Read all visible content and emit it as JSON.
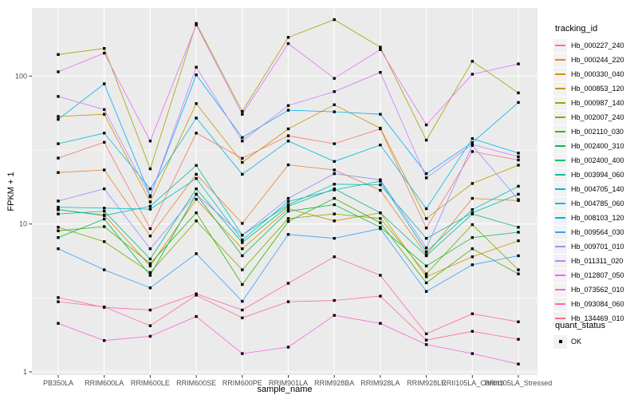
{
  "figure": {
    "panel_background": "#EBEBEB",
    "grid_color": "#FFFFFF",
    "tick_color": "#333333",
    "tick_label_color": "#4D4D4D",
    "point_color": "#000000",
    "legend_key_background": "#F2F2F2"
  },
  "axes": {
    "x_title": "sample_name",
    "y_title": "FPKM + 1"
  },
  "legend": {
    "color_title": "tracking_id",
    "shape_title": "quant_status",
    "shape_entry_label": "OK"
  },
  "chart_data": {
    "type": "line",
    "title": "",
    "xlabel": "sample_name",
    "ylabel": "FPKM + 1",
    "y_scale": "log10",
    "y_ticks": [
      1,
      10,
      100
    ],
    "y_minor_ticks": [
      3.1623,
      31.623,
      316.23
    ],
    "ylim": [
      1,
      320
    ],
    "grid": true,
    "legend_position": "right",
    "point_shape": "filled-square",
    "categories": [
      "PB350LA",
      "RRIM600LA",
      "RRIM600LE",
      "RRIM600SE",
      "RRIM600PE",
      "RRIM901LA",
      "RRIM928BA",
      "RRIM928LA",
      "RRIM928LE",
      "RRII105LA_Control",
      "RRII105LA_Stressed"
    ],
    "series": [
      {
        "name": "Hb_000227_240",
        "color": "#F8766D",
        "values": [
          27.9,
          35.7,
          9.3,
          41.2,
          27.8,
          39.5,
          34.9,
          44.0,
          9.4,
          30.9,
          27.1
        ]
      },
      {
        "name": "Hb_000244_220",
        "color": "#EA8331",
        "values": [
          22.3,
          23.2,
          8.3,
          21.7,
          10.1,
          25.1,
          23.2,
          16.9,
          6.2,
          14.9,
          14.4
        ]
      },
      {
        "name": "Hb_000330_040",
        "color": "#D89000",
        "values": [
          12.5,
          11.5,
          5.2,
          14.7,
          6.8,
          12.7,
          10.5,
          11.9,
          4.4,
          6.0,
          7.7
        ]
      },
      {
        "name": "Hb_000853_120",
        "color": "#C09B00",
        "values": [
          53.3,
          55.2,
          14.1,
          65.2,
          26.1,
          44.0,
          64.0,
          44.5,
          10.9,
          18.8,
          25.0
        ]
      },
      {
        "name": "Hb_000987_140",
        "color": "#A3A500",
        "values": [
          140,
          154,
          23.6,
          227,
          57.8,
          183,
          241,
          157,
          36.9,
          126,
          77.0
        ]
      },
      {
        "name": "Hb_002007_240",
        "color": "#7CAE00",
        "values": [
          9.5,
          7.6,
          4.7,
          10.5,
          4.9,
          10.9,
          11.7,
          10.9,
          4.6,
          9.9,
          4.9
        ]
      },
      {
        "name": "Hb_002110_030",
        "color": "#39B600",
        "values": [
          9.0,
          9.6,
          5.4,
          11.9,
          3.9,
          10.4,
          14.9,
          10.2,
          4.0,
          6.8,
          4.6
        ]
      },
      {
        "name": "Hb_002400_310",
        "color": "#00BB4E",
        "values": [
          8.1,
          10.8,
          4.5,
          15.9,
          6.1,
          12.2,
          13.5,
          9.5,
          5.2,
          8.1,
          8.8
        ]
      },
      {
        "name": "Hb_002400_400",
        "color": "#00BF7D",
        "values": [
          11.7,
          12.2,
          5.8,
          17.3,
          7.5,
          13.2,
          17.3,
          11.9,
          6.1,
          11.7,
          9.5
        ]
      },
      {
        "name": "Hb_003994_060",
        "color": "#00C1A7",
        "values": [
          12.5,
          11.4,
          13.2,
          24.9,
          8.4,
          13.5,
          18.6,
          18.4,
          8.0,
          11.9,
          15.9
        ]
      },
      {
        "name": "Hb_004705_140",
        "color": "#00BFC4",
        "values": [
          13.0,
          12.8,
          12.6,
          20.3,
          7.8,
          14.2,
          17.0,
          19.5,
          6.5,
          12.5,
          18.0
        ]
      },
      {
        "name": "Hb_004785_060",
        "color": "#00BAE0",
        "values": [
          34.9,
          41.2,
          17.3,
          52.1,
          21.7,
          36.4,
          26.5,
          34.2,
          12.7,
          37.8,
          30.2
        ]
      },
      {
        "name": "Hb_008103_120",
        "color": "#00B0F6",
        "values": [
          51.0,
          88.7,
          15.5,
          102,
          38.4,
          58.8,
          57.4,
          55.2,
          21.9,
          35.5,
          66.4
        ]
      },
      {
        "name": "Hb_009564_030",
        "color": "#35A2FF",
        "values": [
          6.8,
          4.9,
          3.7,
          6.3,
          3.0,
          8.5,
          8.0,
          9.3,
          3.5,
          5.3,
          6.1
        ]
      },
      {
        "name": "Hb_009701_010",
        "color": "#9590FF",
        "values": [
          14.3,
          17.3,
          6.8,
          15.9,
          8.4,
          14.9,
          21.9,
          19.9,
          6.9,
          34.0,
          14.6
        ]
      },
      {
        "name": "Hb_011311_020",
        "color": "#C77CFF",
        "values": [
          72.8,
          59.4,
          15.3,
          115,
          36.4,
          63.2,
          78.6,
          106,
          20.5,
          34.5,
          28.5
        ]
      },
      {
        "name": "Hb_012807_050",
        "color": "#E76BF3",
        "values": [
          107,
          143,
          36.4,
          222,
          55.2,
          166,
          96.6,
          151,
          46.8,
          103,
          121
        ]
      },
      {
        "name": "Hb_073562_010",
        "color": "#FA62DB",
        "values": [
          2.13,
          1.63,
          1.74,
          2.37,
          1.33,
          1.47,
          2.41,
          2.13,
          1.53,
          1.33,
          1.13
        ]
      },
      {
        "name": "Hb_093084_060",
        "color": "#FF62BC",
        "values": [
          3.18,
          2.73,
          2.62,
          3.37,
          2.62,
          3.97,
          6.0,
          4.5,
          1.81,
          2.47,
          2.18
        ]
      },
      {
        "name": "Hb_134469_010",
        "color": "#FF6A98",
        "values": [
          2.98,
          2.75,
          2.05,
          3.3,
          2.32,
          2.98,
          3.04,
          3.25,
          1.64,
          1.88,
          1.66
        ]
      }
    ],
    "quant_status": {
      "label": "OK",
      "shape": "square",
      "color": "#000000"
    }
  }
}
